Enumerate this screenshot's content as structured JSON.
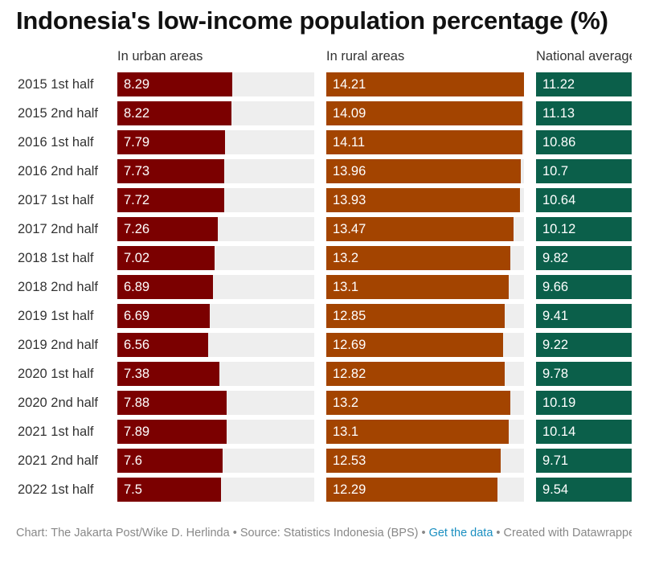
{
  "title": "Indonesia's low-income population percentage (%)",
  "chart_data": {
    "type": "bar",
    "orientation": "horizontal",
    "title": "Indonesia's low-income population percentage (%)",
    "categories": [
      "2015 1st half",
      "2015 2nd half",
      "2016 1st half",
      "2016 2nd half",
      "2017 1st half",
      "2017 2nd half",
      "2018 1st half",
      "2018 2nd half",
      "2019 1st half",
      "2019 2nd half",
      "2020 1st half",
      "2020 2nd half",
      "2021 1st half",
      "2021 2nd half",
      "2022 1st half"
    ],
    "series": [
      {
        "name": "In urban areas",
        "color": "#7b0000",
        "values": [
          8.29,
          8.22,
          7.79,
          7.73,
          7.72,
          7.26,
          7.02,
          6.89,
          6.69,
          6.56,
          7.38,
          7.88,
          7.89,
          7.6,
          7.5
        ]
      },
      {
        "name": "In rural areas",
        "color": "#a34400",
        "values": [
          14.21,
          14.09,
          14.11,
          13.96,
          13.93,
          13.47,
          13.2,
          13.1,
          12.85,
          12.69,
          12.82,
          13.2,
          13.1,
          12.53,
          12.29
        ]
      },
      {
        "name": "National average",
        "color": "#0b5f4a",
        "values": [
          11.22,
          11.13,
          10.86,
          10.7,
          10.64,
          10.12,
          9.82,
          9.66,
          9.41,
          9.22,
          9.78,
          10.19,
          10.14,
          9.71,
          9.54
        ]
      }
    ],
    "xlim": [
      0,
      14.21
    ],
    "grid": false,
    "legend": "none"
  },
  "footer": {
    "credit": "Chart: The Jakarta Post/Wike D. Herlinda",
    "sep1": " • ",
    "source": "Source: Statistics Indonesia (BPS)",
    "sep2": " • ",
    "link": "Get the data",
    "sep3": " • ",
    "created": "Created with Datawrapper"
  }
}
